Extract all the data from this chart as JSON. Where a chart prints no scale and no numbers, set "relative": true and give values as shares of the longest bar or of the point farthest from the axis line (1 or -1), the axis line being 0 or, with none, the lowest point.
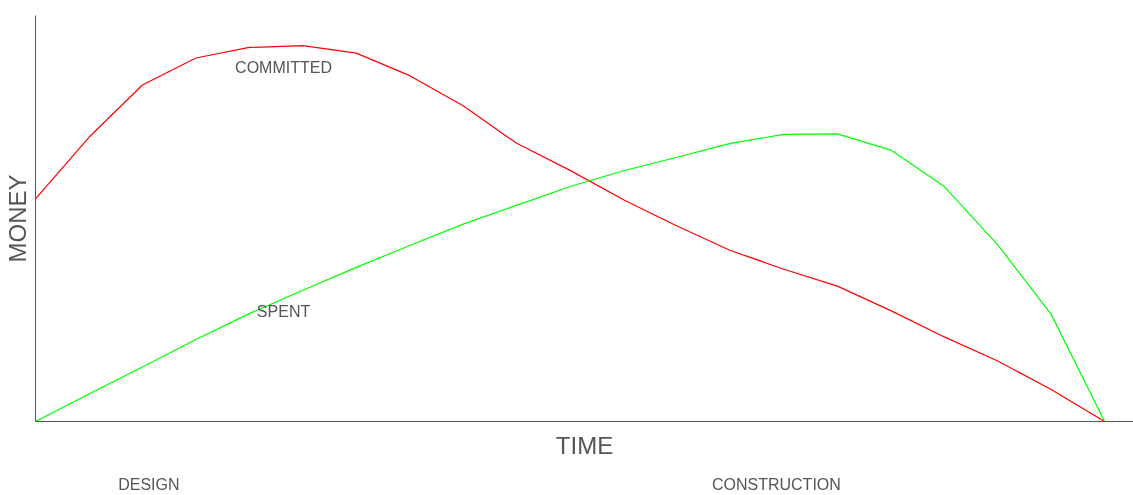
{
  "chart_data": {
    "type": "line",
    "relative": true,
    "xlabel": "TIME",
    "ylabel": "MONEY",
    "categories": [
      null,
      null,
      null,
      null,
      null,
      null,
      null,
      null,
      null,
      null,
      null,
      null,
      null,
      null,
      null,
      null,
      null,
      null,
      null,
      null,
      null
    ],
    "annotations": [
      "DESIGN",
      "CONSTRUCTION"
    ],
    "marker": "none",
    "line_style": "solid",
    "series": [
      {
        "name": "COMMITTED",
        "color": "#ff0000",
        "values": [
          0.592,
          0.756,
          0.895,
          0.967,
          0.995,
          1,
          0.98,
          0.92,
          0.84,
          0.74,
          0.668,
          0.59,
          0.52,
          0.455,
          0.405,
          0.36,
          0.295,
          0.225,
          0.161,
          0.085,
          0
        ]
      },
      {
        "name": "SPENT",
        "color": "#00ff00",
        "values": [
          0,
          0.073,
          0.145,
          0.218,
          0.287,
          0.349,
          0.41,
          0.468,
          0.525,
          0.575,
          0.625,
          0.667,
          0.703,
          0.74,
          0.764,
          0.765,
          0.722,
          0.625,
          0.47,
          0.285,
          0
        ]
      }
    ]
  }
}
